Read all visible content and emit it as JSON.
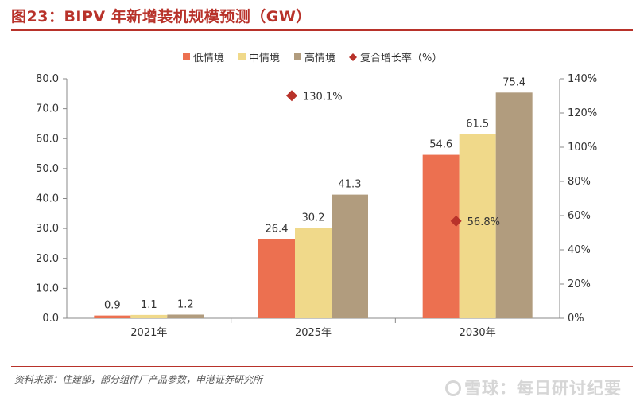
{
  "figure": {
    "title": "图23：BIPV 年新增装机规模预测（GW）",
    "source": "资料来源：住建部，部分组件厂产品参数，申港证券研究所",
    "watermark": "雪球：每日研讨纪要"
  },
  "chart_data": {
    "type": "bar",
    "categories": [
      "2021年",
      "2025年",
      "2030年"
    ],
    "series": [
      {
        "name": "低情境",
        "color": "#ec7050",
        "values": [
          0.9,
          26.4,
          54.6
        ]
      },
      {
        "name": "中情境",
        "color": "#f0d98a",
        "values": [
          1.1,
          30.2,
          61.5
        ]
      },
      {
        "name": "高情境",
        "color": "#b19c7e",
        "values": [
          1.2,
          41.3,
          75.4
        ]
      }
    ],
    "growth_series": {
      "name": "复合增长率（%）",
      "color": "#b8322a",
      "marker": "diamond",
      "values": [
        null,
        130.1,
        56.8
      ],
      "labels": [
        "",
        "130.1%",
        "56.8%"
      ]
    },
    "y_left": {
      "ylim": [
        0,
        80
      ],
      "ticks": [
        0,
        10,
        20,
        30,
        40,
        50,
        60,
        70,
        80
      ],
      "tick_labels": [
        "0.0",
        "10.0",
        "20.0",
        "30.0",
        "40.0",
        "50.0",
        "60.0",
        "70.0",
        "80.0"
      ]
    },
    "y_right": {
      "ylim": [
        0,
        140
      ],
      "ticks": [
        0,
        20,
        40,
        60,
        80,
        100,
        120,
        140
      ],
      "tick_labels": [
        "0%",
        "20%",
        "40%",
        "60%",
        "80%",
        "100%",
        "120%",
        "140%"
      ]
    },
    "legend_position": "top",
    "grid": false
  }
}
